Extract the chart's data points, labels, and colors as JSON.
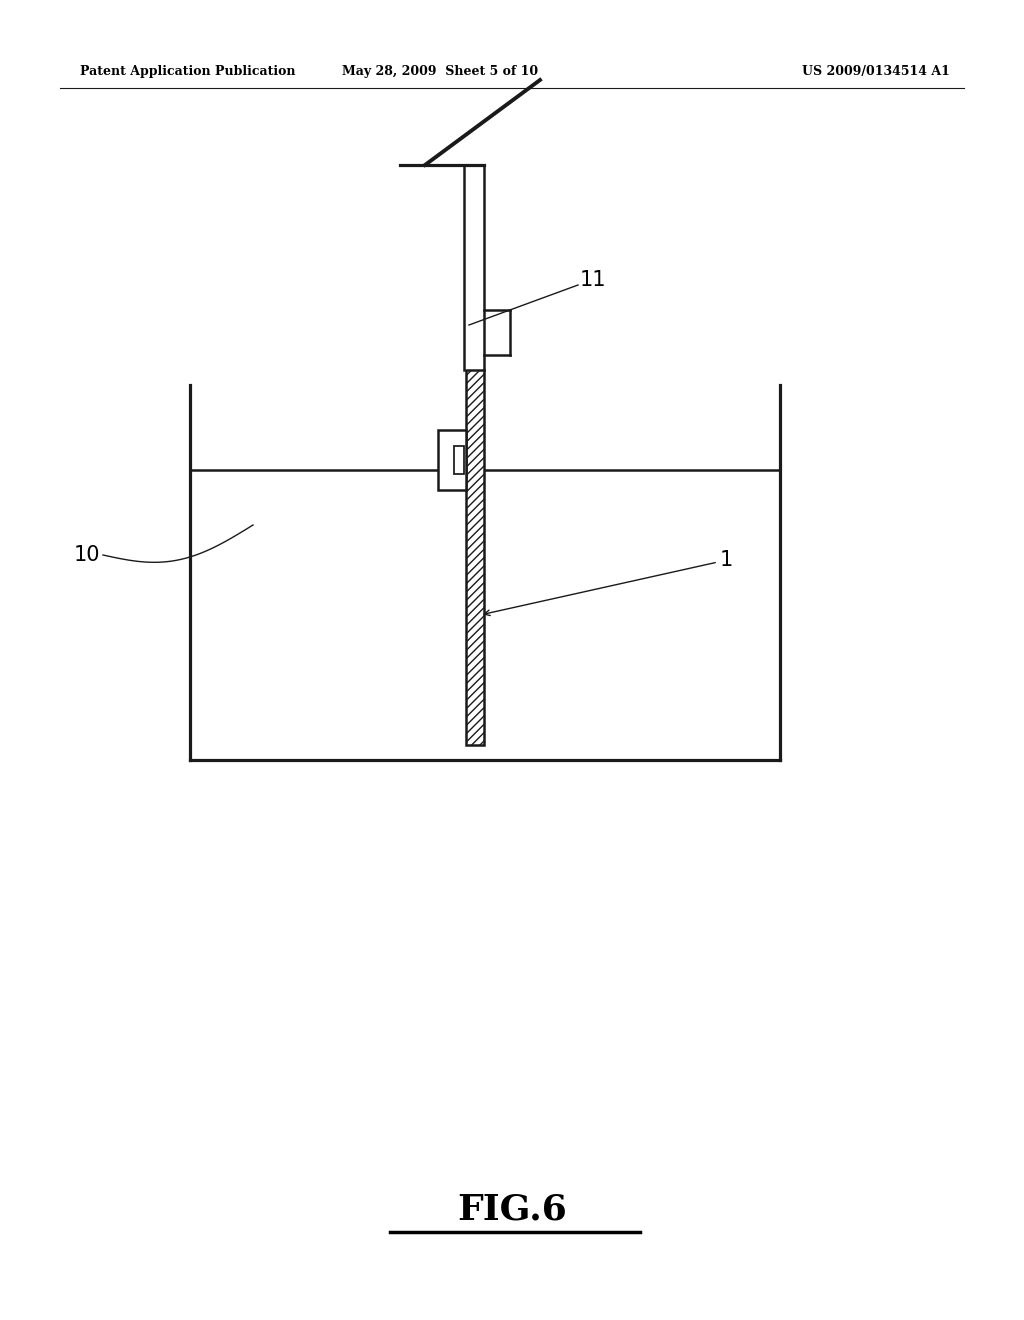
{
  "bg_color": "#ffffff",
  "line_color": "#1a1a1a",
  "header_left": "Patent Application Publication",
  "header_mid": "May 28, 2009  Sheet 5 of 10",
  "header_right": "US 2009/0134514 A1",
  "fig_label": "FIG.6",
  "label_10": "10",
  "label_11": "11",
  "label_1": "1",
  "lw": 1.8
}
